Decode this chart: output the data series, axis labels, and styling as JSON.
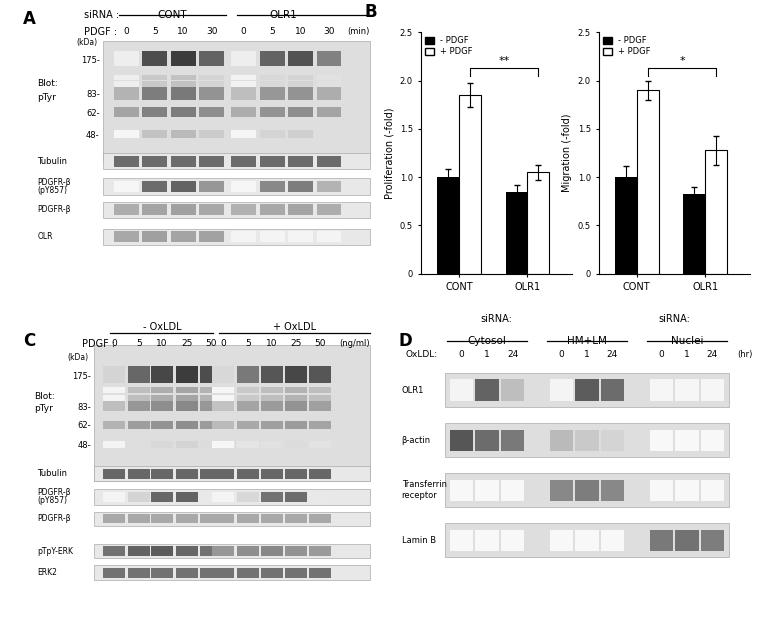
{
  "panel_B_prolif": {
    "groups": [
      "CONT",
      "OLR1"
    ],
    "minus_pdgf": [
      1.0,
      0.85
    ],
    "plus_pdgf": [
      1.85,
      1.05
    ],
    "minus_err": [
      0.08,
      0.07
    ],
    "plus_err": [
      0.12,
      0.08
    ],
    "ylabel": "Proliferation (-fold)",
    "sig_bracket": "**"
  },
  "panel_B_migr": {
    "groups": [
      "CONT",
      "OLR1"
    ],
    "minus_pdgf": [
      1.0,
      0.83
    ],
    "plus_pdgf": [
      1.9,
      1.28
    ],
    "minus_err": [
      0.12,
      0.07
    ],
    "plus_err": [
      0.1,
      0.15
    ],
    "ylabel": "Migration (-fold)",
    "sig_bracket": "*"
  },
  "bg_color": "#e8e8e8",
  "bg_edge": "#aaaaaa"
}
